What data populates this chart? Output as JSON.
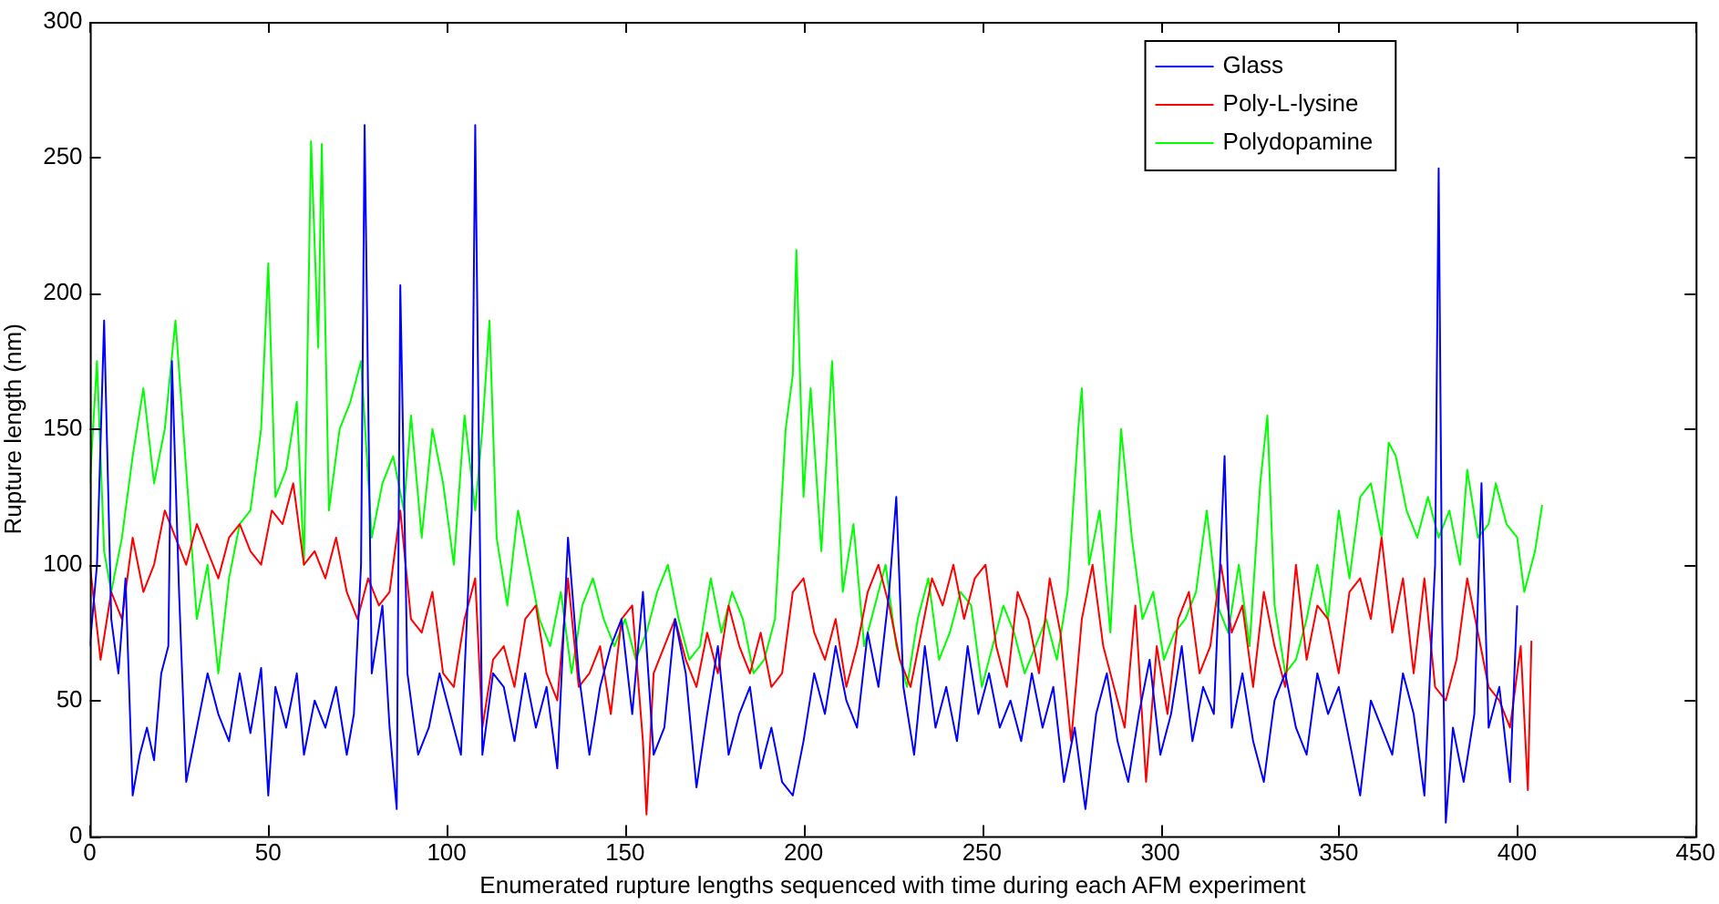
{
  "chart_data": {
    "type": "line",
    "xlabel": "Enumerated rupture lengths sequenced with time during each AFM experiment",
    "ylabel": "Rupture length (nm)",
    "xlim": [
      0,
      450
    ],
    "ylim": [
      0,
      300
    ],
    "xticks": [
      0,
      50,
      100,
      150,
      200,
      250,
      300,
      350,
      400,
      450
    ],
    "yticks": [
      0,
      50,
      100,
      150,
      200,
      250,
      300
    ],
    "grid": false,
    "legend": "top right",
    "marker": "none",
    "line_style": "solid",
    "series": [
      {
        "name": "Glass",
        "color": "#0000ff",
        "x": [
          0,
          2,
          4,
          6,
          8,
          10,
          12,
          14,
          16,
          18,
          20,
          22,
          23,
          25,
          27,
          30,
          33,
          36,
          39,
          42,
          45,
          48,
          50,
          52,
          55,
          58,
          60,
          63,
          66,
          69,
          72,
          74,
          76,
          77,
          79,
          82,
          84,
          86,
          87,
          89,
          92,
          95,
          98,
          101,
          104,
          107,
          108,
          110,
          113,
          116,
          119,
          122,
          125,
          128,
          131,
          134,
          137,
          140,
          143,
          146,
          149,
          152,
          155,
          158,
          161,
          164,
          167,
          170,
          173,
          176,
          179,
          182,
          185,
          188,
          191,
          194,
          197,
          200,
          203,
          206,
          209,
          212,
          215,
          218,
          221,
          224,
          226,
          228,
          231,
          234,
          237,
          240,
          243,
          246,
          249,
          252,
          255,
          258,
          261,
          264,
          267,
          270,
          273,
          276,
          279,
          282,
          285,
          288,
          291,
          294,
          297,
          300,
          303,
          306,
          309,
          312,
          315,
          318,
          320,
          323,
          326,
          329,
          332,
          335,
          338,
          341,
          344,
          347,
          350,
          353,
          356,
          359,
          362,
          365,
          368,
          371,
          374,
          377,
          378,
          379,
          380,
          382,
          385,
          388,
          390,
          392,
          395,
          398,
          400
        ],
        "values": [
          70,
          100,
          190,
          80,
          60,
          95,
          15,
          30,
          40,
          28,
          60,
          70,
          175,
          90,
          20,
          40,
          60,
          45,
          35,
          60,
          38,
          62,
          15,
          55,
          40,
          60,
          30,
          50,
          40,
          55,
          30,
          45,
          100,
          262,
          60,
          85,
          40,
          10,
          203,
          60,
          30,
          40,
          60,
          45,
          30,
          120,
          262,
          30,
          60,
          55,
          35,
          60,
          40,
          55,
          25,
          110,
          60,
          30,
          55,
          70,
          80,
          45,
          90,
          30,
          40,
          80,
          60,
          18,
          45,
          70,
          30,
          45,
          55,
          25,
          40,
          20,
          15,
          35,
          60,
          45,
          70,
          50,
          40,
          75,
          55,
          90,
          125,
          55,
          30,
          70,
          40,
          55,
          35,
          70,
          45,
          60,
          40,
          50,
          35,
          60,
          40,
          55,
          20,
          40,
          10,
          45,
          60,
          35,
          20,
          45,
          65,
          30,
          45,
          70,
          35,
          55,
          45,
          140,
          40,
          60,
          35,
          20,
          50,
          60,
          40,
          30,
          60,
          45,
          55,
          35,
          15,
          50,
          40,
          30,
          60,
          45,
          15,
          100,
          246,
          80,
          5,
          40,
          20,
          45,
          130,
          40,
          55,
          20,
          85
        ]
      },
      {
        "name": "Poly-L-lysine",
        "color": "#ff0000",
        "x": [
          0,
          3,
          6,
          9,
          12,
          15,
          18,
          21,
          24,
          27,
          30,
          33,
          36,
          39,
          42,
          45,
          48,
          51,
          54,
          57,
          60,
          63,
          66,
          69,
          72,
          75,
          78,
          81,
          84,
          87,
          90,
          93,
          96,
          99,
          102,
          105,
          108,
          110,
          113,
          116,
          119,
          122,
          125,
          128,
          131,
          134,
          137,
          140,
          143,
          146,
          149,
          152,
          155,
          156,
          158,
          161,
          164,
          167,
          170,
          173,
          176,
          179,
          182,
          185,
          188,
          191,
          194,
          197,
          200,
          203,
          206,
          209,
          212,
          215,
          218,
          221,
          224,
          227,
          230,
          233,
          236,
          239,
          242,
          245,
          248,
          251,
          254,
          257,
          260,
          263,
          266,
          269,
          272,
          275,
          278,
          281,
          284,
          287,
          290,
          293,
          296,
          299,
          302,
          305,
          308,
          311,
          314,
          317,
          320,
          323,
          326,
          329,
          332,
          335,
          338,
          341,
          344,
          347,
          350,
          353,
          356,
          359,
          362,
          365,
          368,
          371,
          374,
          377,
          380,
          383,
          386,
          389,
          392,
          395,
          398,
          401,
          403,
          404
        ],
        "values": [
          100,
          65,
          90,
          80,
          110,
          90,
          100,
          120,
          110,
          100,
          115,
          105,
          95,
          110,
          115,
          105,
          100,
          120,
          115,
          130,
          100,
          105,
          95,
          110,
          90,
          80,
          95,
          85,
          90,
          120,
          80,
          75,
          90,
          60,
          55,
          80,
          95,
          40,
          65,
          70,
          55,
          80,
          85,
          60,
          50,
          95,
          55,
          60,
          70,
          45,
          80,
          85,
          35,
          8,
          60,
          70,
          80,
          65,
          55,
          75,
          60,
          85,
          70,
          60,
          75,
          55,
          60,
          90,
          95,
          75,
          65,
          80,
          55,
          70,
          90,
          100,
          85,
          65,
          55,
          75,
          95,
          85,
          100,
          80,
          95,
          100,
          70,
          55,
          90,
          80,
          60,
          95,
          75,
          35,
          80,
          100,
          70,
          55,
          40,
          85,
          20,
          70,
          45,
          80,
          90,
          60,
          70,
          100,
          75,
          85,
          55,
          90,
          70,
          55,
          100,
          65,
          85,
          80,
          60,
          90,
          95,
          80,
          110,
          75,
          95,
          60,
          95,
          55,
          50,
          65,
          95,
          75,
          55,
          50,
          40,
          70,
          17,
          72
        ]
      },
      {
        "name": "Polydopamine",
        "color": "#00ff00",
        "x": [
          0,
          2,
          4,
          6,
          9,
          12,
          15,
          18,
          21,
          24,
          27,
          30,
          33,
          36,
          39,
          42,
          45,
          48,
          50,
          52,
          55,
          58,
          60,
          62,
          64,
          65,
          67,
          70,
          73,
          76,
          79,
          82,
          85,
          88,
          90,
          93,
          96,
          99,
          102,
          105,
          108,
          110,
          112,
          114,
          117,
          120,
          123,
          126,
          129,
          132,
          135,
          138,
          141,
          144,
          147,
          150,
          153,
          156,
          159,
          162,
          165,
          168,
          171,
          174,
          177,
          180,
          183,
          186,
          189,
          192,
          195,
          197,
          198,
          200,
          202,
          205,
          208,
          211,
          214,
          217,
          220,
          223,
          226,
          229,
          232,
          235,
          238,
          241,
          244,
          247,
          250,
          253,
          256,
          259,
          262,
          265,
          268,
          271,
          274,
          277,
          278,
          280,
          283,
          286,
          289,
          292,
          295,
          298,
          301,
          304,
          307,
          310,
          313,
          316,
          319,
          322,
          325,
          328,
          330,
          332,
          335,
          338,
          341,
          344,
          347,
          350,
          353,
          356,
          359,
          362,
          364,
          366,
          369,
          372,
          375,
          378,
          381,
          384,
          386,
          389,
          392,
          394,
          397,
          400,
          402,
          405,
          407
        ],
        "values": [
          130,
          175,
          105,
          90,
          110,
          140,
          165,
          130,
          150,
          190,
          135,
          80,
          100,
          60,
          95,
          115,
          120,
          150,
          211,
          125,
          135,
          160,
          100,
          256,
          180,
          255,
          120,
          150,
          160,
          175,
          110,
          130,
          140,
          120,
          155,
          110,
          150,
          130,
          100,
          155,
          120,
          150,
          190,
          110,
          85,
          120,
          100,
          80,
          70,
          90,
          60,
          85,
          95,
          80,
          70,
          80,
          65,
          75,
          90,
          100,
          80,
          65,
          70,
          95,
          75,
          90,
          80,
          60,
          65,
          80,
          150,
          170,
          216,
          125,
          165,
          105,
          175,
          90,
          115,
          70,
          85,
          100,
          70,
          55,
          80,
          95,
          65,
          75,
          90,
          85,
          55,
          70,
          85,
          75,
          60,
          70,
          80,
          65,
          90,
          150,
          165,
          100,
          120,
          75,
          150,
          110,
          80,
          90,
          65,
          75,
          80,
          90,
          120,
          85,
          75,
          100,
          70,
          130,
          155,
          85,
          60,
          65,
          80,
          100,
          80,
          120,
          95,
          125,
          130,
          110,
          145,
          140,
          120,
          110,
          125,
          110,
          120,
          100,
          135,
          110,
          115,
          130,
          115,
          110,
          90,
          105,
          122
        ]
      }
    ]
  }
}
